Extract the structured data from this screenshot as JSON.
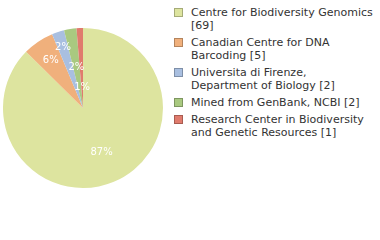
{
  "chart_data": {
    "type": "pie",
    "categories": [
      "Centre for Biodiversity Genomics [69]",
      "Canadian Centre for DNA Barcoding [5]",
      "Universita di Firenze, Department of Biology [2]",
      "Mined from GenBank, NCBI [2]",
      "Research Center in Biodiversity and Genetic Resources [1]"
    ],
    "values": [
      87.3,
      6.3,
      2.5,
      2.5,
      1.3
    ],
    "value_labels": [
      "87%",
      "6%",
      "2%",
      "2%",
      "1%"
    ],
    "colors": [
      "#dde49f",
      "#f0b07c",
      "#a9bfe0",
      "#a9c980",
      "#e07b6d"
    ],
    "legend": "right",
    "data_labels": true
  }
}
